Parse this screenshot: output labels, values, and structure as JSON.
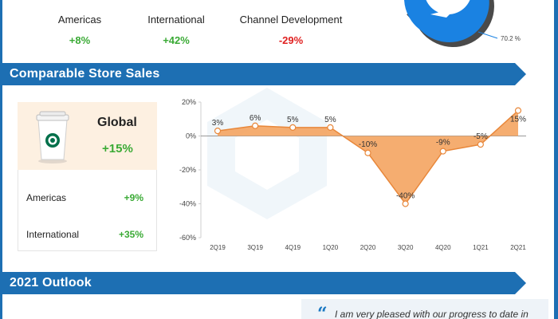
{
  "segments": [
    {
      "name": "Americas",
      "value": "+8%"
    },
    {
      "name": "International",
      "value": "+42%"
    },
    {
      "name": "Channel Development",
      "value": "-29%"
    }
  ],
  "donut": {
    "label": "70.2 %",
    "share": 0.702,
    "colors": {
      "main": "#1a82e2",
      "rest": "#4a4a4a"
    }
  },
  "comparable": {
    "title": "Comparable Store Sales",
    "global": {
      "title": "Global",
      "value": "+15%"
    },
    "regions": [
      {
        "name": "Americas",
        "value": "+9%"
      },
      {
        "name": "International",
        "value": "+35%"
      }
    ]
  },
  "outlook": {
    "title": "2021 Outlook",
    "quote": "I am very pleased with our progress to date in"
  },
  "colors": {
    "banner": "#1d6fb3",
    "positive": "#3aaa35",
    "negative": "#e02020",
    "area": "#f4a460",
    "line": "#e8873a"
  },
  "chart_data": {
    "type": "area",
    "categories": [
      "2Q19",
      "3Q19",
      "4Q19",
      "1Q20",
      "2Q20",
      "3Q20",
      "4Q20",
      "1Q21",
      "2Q21"
    ],
    "values": [
      3,
      6,
      5,
      5,
      -10,
      -40,
      -9,
      -5,
      15
    ],
    "data_labels": [
      "3%",
      "6%",
      "5%",
      "5%",
      "-10%",
      "-40%",
      "-9%",
      "-5%",
      "15%"
    ],
    "y_ticks": [
      "20%",
      "0%",
      "-20%",
      "-40%",
      "-60%"
    ],
    "ylim": [
      -60,
      20
    ],
    "grid": false
  }
}
